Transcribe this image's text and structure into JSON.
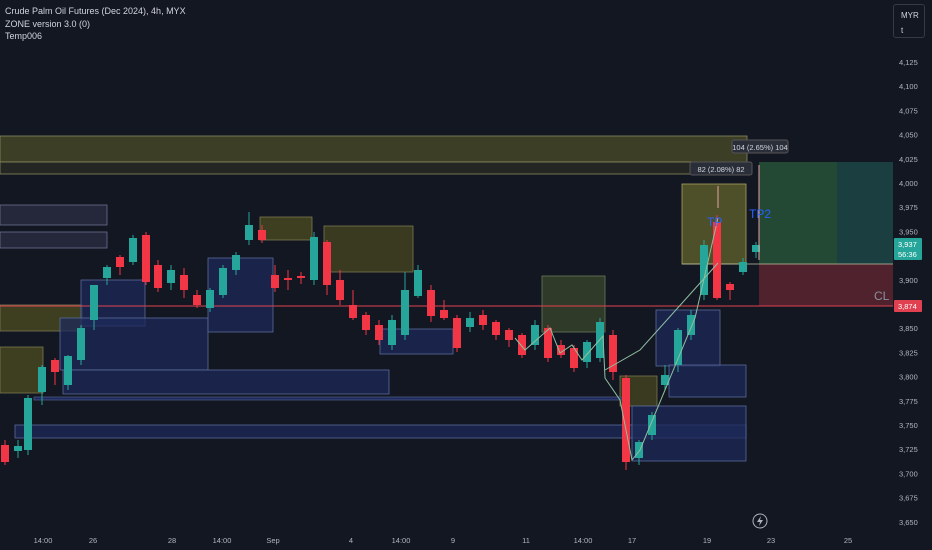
{
  "legend": {
    "title": "Crude Palm Oil Futures (Dec 2024), 4h, MYX",
    "indicator1": "ZONE version 3.0 (0)",
    "indicator2": "Temp006"
  },
  "currency": {
    "code": "MYR",
    "sub": "t"
  },
  "price_axis": {
    "ticks": [
      "4,125",
      "4,100",
      "4,075",
      "4,050",
      "4,025",
      "4,000",
      "3,975",
      "3,950",
      "3,925",
      "3,900",
      "3,875",
      "3,850",
      "3,825",
      "3,800",
      "3,775",
      "3,750",
      "3,725",
      "3,700",
      "3,675",
      "3,650"
    ],
    "last_price": "3,937",
    "countdown": "56:36",
    "level_price": "3,874"
  },
  "time_axis": [
    "14:00",
    "26",
    "28",
    "14:00",
    "Sep",
    "4",
    "14:00",
    "9",
    "11",
    "14:00",
    "17",
    "19",
    "23",
    "25"
  ],
  "annotations": {
    "measure_top": "104 (2.65%) 104",
    "measure_mid": "82 (2.08%) 82",
    "tp1": "TP",
    "tp2": "TP2",
    "cl": "CL"
  },
  "colors": {
    "background": "#131722",
    "up": "#26a69a",
    "down": "#f23645",
    "demand_zone": "#1e2a5a",
    "supply_zone": "#4a4a1e",
    "level_line": "#e04050"
  }
}
